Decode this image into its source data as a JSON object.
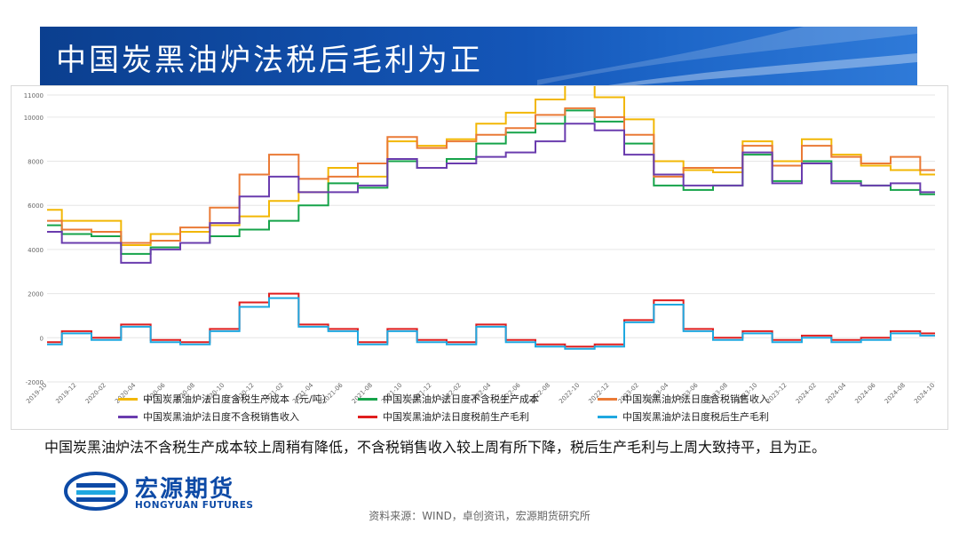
{
  "header": {
    "title": "中国炭黑油炉法税后毛利为正"
  },
  "description": "中国炭黑油炉法不含税生产成本较上周稍有降低，不含税销售收入较上周有所下降，税后生产毛利与上周大致持平，且为正。",
  "logo": {
    "cn": "宏源期货",
    "en": "HONGYUAN FUTURES"
  },
  "source": "资料来源：WIND，卓创资讯，宏源期货研究所",
  "colors": {
    "banner": "#1456b8",
    "yellow": "#f2b705",
    "green": "#16a34a",
    "orange": "#ea7a36",
    "purple": "#6a3cae",
    "red": "#e01e1e",
    "cyan": "#1fa8e0"
  },
  "chart_data": {
    "type": "line",
    "ylim": [
      -2000,
      11000
    ],
    "yticks": [
      "11000",
      "10000",
      "8000",
      "6000",
      "4000",
      "2000",
      "0",
      "-2000"
    ],
    "yticks_values": [
      11000,
      10000,
      8000,
      6000,
      4000,
      2000,
      0,
      -2000
    ],
    "x": [
      "2019-10",
      "2019-12",
      "2020-02",
      "2020-04",
      "2020-06",
      "2020-08",
      "2020-10",
      "2020-12",
      "2021-02",
      "2021-04",
      "2021-06",
      "2021-08",
      "2021-10",
      "2021-12",
      "2022-02",
      "2022-04",
      "2022-06",
      "2022-08",
      "2022-10",
      "2022-12",
      "2023-02",
      "2023-04",
      "2023-06",
      "2023-08",
      "2023-10",
      "2023-12",
      "2024-02",
      "2024-04",
      "2024-06",
      "2024-08",
      "2024-10"
    ],
    "series": [
      {
        "name": "中国炭黑油炉法日度含税生产成本（元/吨）",
        "color": "#f2b705",
        "values": [
          5800,
          5300,
          5300,
          4200,
          4700,
          4800,
          5100,
          5500,
          6200,
          6600,
          7700,
          7300,
          8900,
          8700,
          9000,
          9700,
          10200,
          10800,
          11600,
          10900,
          9900,
          8000,
          7600,
          7500,
          8900,
          8000,
          9000,
          8300,
          7800,
          7600,
          7400
        ]
      },
      {
        "name": "中国炭黑油炉法日度不含税生产成本",
        "color": "#16a34a",
        "values": [
          5100,
          4700,
          4600,
          3800,
          4100,
          4300,
          4600,
          4900,
          5300,
          6000,
          7000,
          6800,
          8000,
          7700,
          8100,
          8800,
          9300,
          9700,
          10300,
          9800,
          8800,
          6900,
          6700,
          6900,
          8300,
          7100,
          8000,
          7100,
          6900,
          6700,
          6500
        ]
      },
      {
        "name": "中国炭黑油炉法日度含税销售收入",
        "color": "#ea7a36",
        "values": [
          5300,
          4900,
          4800,
          4300,
          4400,
          5000,
          5900,
          7400,
          8300,
          7200,
          7300,
          7900,
          9100,
          8600,
          8900,
          9200,
          9500,
          10100,
          10400,
          10000,
          9200,
          7300,
          7700,
          7700,
          8700,
          7800,
          8700,
          8200,
          7900,
          8200,
          7600
        ]
      },
      {
        "name": "中国炭黑油炉法日度不含税销售收入",
        "color": "#6a3cae",
        "values": [
          4800,
          4300,
          4300,
          3400,
          4000,
          4300,
          5200,
          6400,
          7300,
          6600,
          6600,
          6900,
          8100,
          7700,
          7900,
          8200,
          8400,
          8900,
          9700,
          9400,
          8300,
          7400,
          6900,
          6900,
          8400,
          7000,
          7900,
          7000,
          6900,
          7000,
          6600
        ]
      },
      {
        "name": "中国炭黑油炉法日度税前生产毛利",
        "color": "#e01e1e",
        "values": [
          -200,
          300,
          0,
          600,
          -100,
          -200,
          400,
          1600,
          2000,
          600,
          400,
          -200,
          400,
          -100,
          -200,
          600,
          -100,
          -300,
          -400,
          -300,
          800,
          1700,
          400,
          0,
          300,
          -100,
          100,
          -100,
          0,
          300,
          200
        ]
      },
      {
        "name": "中国炭黑油炉法日度税后生产毛利",
        "color": "#1fa8e0",
        "values": [
          -300,
          200,
          -100,
          500,
          -200,
          -300,
          300,
          1400,
          1800,
          500,
          300,
          -300,
          300,
          -200,
          -300,
          500,
          -200,
          -400,
          -500,
          -400,
          700,
          1500,
          300,
          -100,
          200,
          -200,
          0,
          -200,
          -100,
          200,
          100
        ]
      }
    ]
  }
}
